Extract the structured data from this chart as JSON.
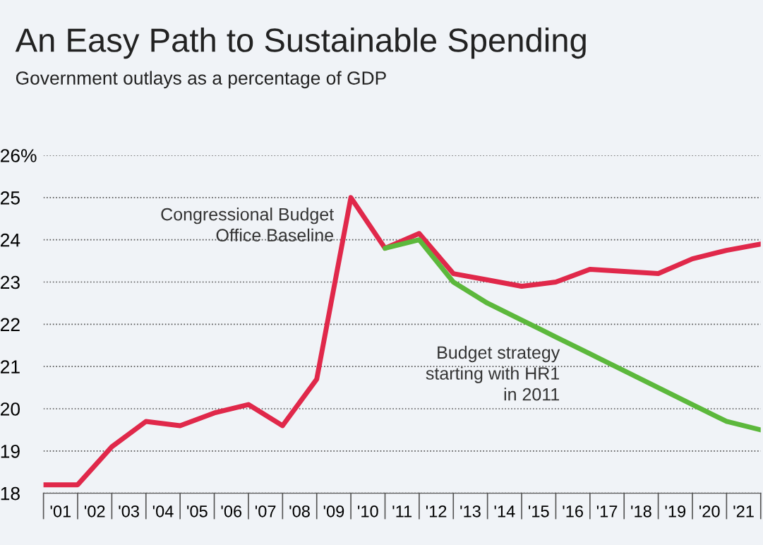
{
  "chart_data": {
    "type": "line",
    "title": "An Easy Path to Sustainable Spending",
    "subtitle": "Government outlays as a percentage of GDP",
    "x": [
      2000.5,
      2001.5,
      2002.5,
      2003.5,
      2004.5,
      2005.5,
      2006.5,
      2007.5,
      2008.5,
      2009.5,
      2010.5,
      2011.5,
      2012.5,
      2013.5,
      2014.5,
      2015.5,
      2016.5,
      2017.5,
      2018.5,
      2019.5,
      2020.5,
      2021.5
    ],
    "series": [
      {
        "color": "#e0284a",
        "values": [
          18.2,
          18.2,
          19.1,
          19.7,
          19.6,
          19.9,
          20.1,
          19.6,
          20.7,
          25.0,
          23.8,
          24.15,
          23.2,
          23.05,
          22.9,
          23.0,
          23.3,
          23.25,
          23.2,
          23.55,
          23.75,
          23.9
        ]
      },
      {
        "color": "#5cb83c",
        "x": [
          2010.5,
          2011.5,
          2012.5,
          2013.5,
          2014.5,
          2015.5,
          2016.5,
          2017.5,
          2018.5,
          2019.5,
          2020.5,
          2021.5
        ],
        "values": [
          23.8,
          24.0,
          23.0,
          22.5,
          22.1,
          21.7,
          21.3,
          20.9,
          20.5,
          20.1,
          19.7,
          19.5
        ]
      }
    ],
    "xlim": [
      2000.5,
      2021.5
    ],
    "ylim": [
      18,
      26
    ],
    "xticks": [
      {
        "value": 2001,
        "label": "'01"
      },
      {
        "value": 2002,
        "label": "'02"
      },
      {
        "value": 2003,
        "label": "'03"
      },
      {
        "value": 2004,
        "label": "'04"
      },
      {
        "value": 2005,
        "label": "'05"
      },
      {
        "value": 2006,
        "label": "'06"
      },
      {
        "value": 2007,
        "label": "'07"
      },
      {
        "value": 2008,
        "label": "'08"
      },
      {
        "value": 2009,
        "label": "'09"
      },
      {
        "value": 2010,
        "label": "'10"
      },
      {
        "value": 2011,
        "label": "'11"
      },
      {
        "value": 2012,
        "label": "'12"
      },
      {
        "value": 2013,
        "label": "'13"
      },
      {
        "value": 2014,
        "label": "'14"
      },
      {
        "value": 2015,
        "label": "'15"
      },
      {
        "value": 2016,
        "label": "'16"
      },
      {
        "value": 2017,
        "label": "'17"
      },
      {
        "value": 2018,
        "label": "'18"
      },
      {
        "value": 2019,
        "label": "'19"
      },
      {
        "value": 2020,
        "label": "'20"
      },
      {
        "value": 2021,
        "label": "'21"
      }
    ],
    "yticks": [
      18,
      19,
      20,
      21,
      22,
      23,
      24,
      25,
      {
        "value": 26,
        "label": "26%"
      }
    ],
    "grid": "y",
    "marker": "none",
    "line_style": "solid",
    "legend": false,
    "annotations": [
      "Congressional Budget\nOffice Baseline",
      "Budget strategy\nstarting with HR1\nin 2011"
    ]
  }
}
